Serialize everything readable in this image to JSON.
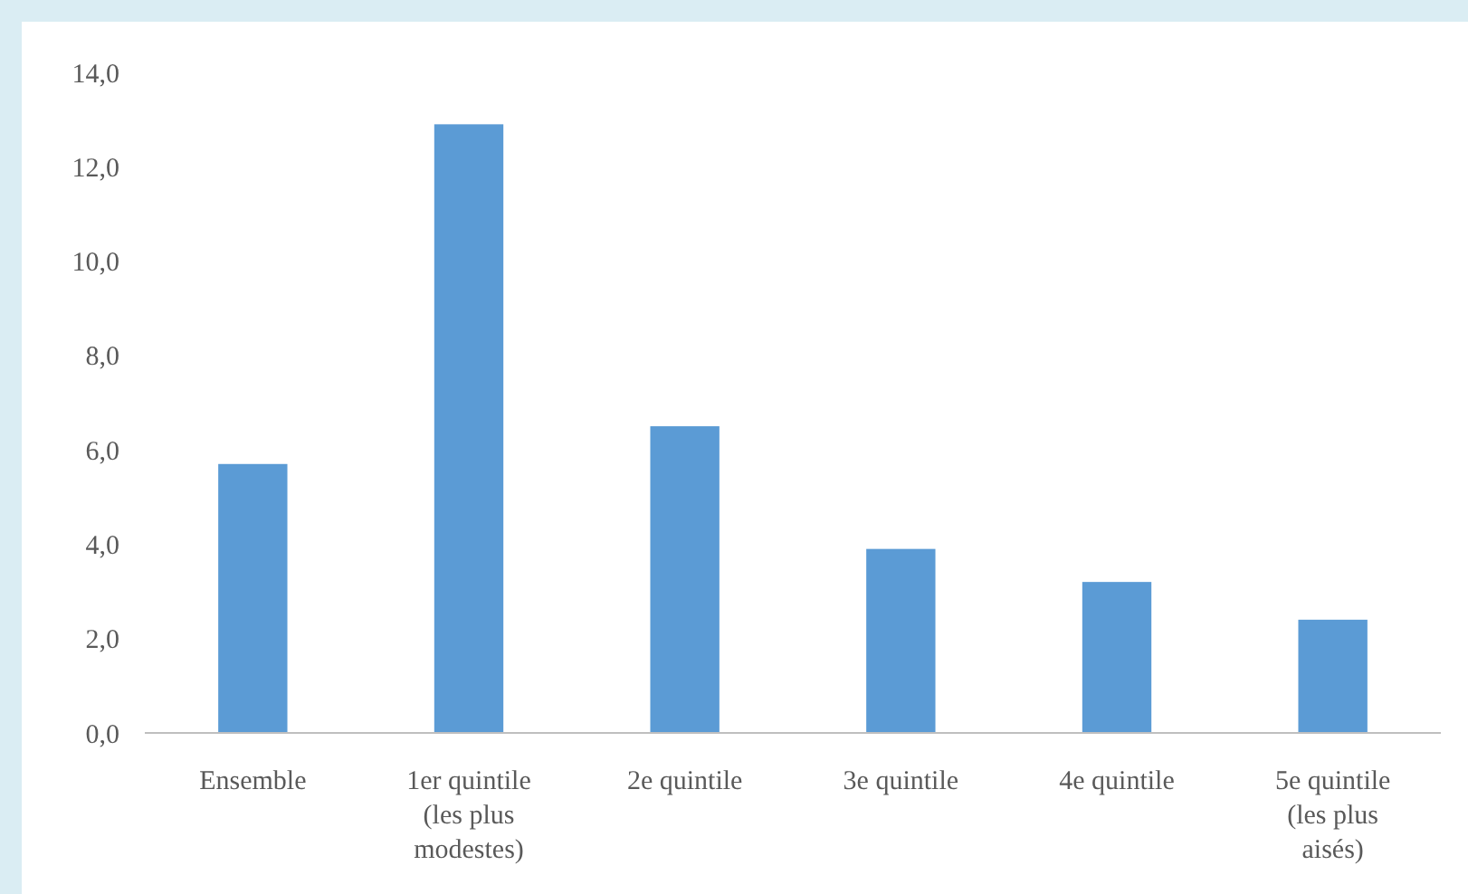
{
  "chart_data": {
    "type": "bar",
    "categories": [
      "Ensemble",
      "1er quintile (les plus modestes)",
      "2e quintile",
      "3e quintile",
      "4e quintile",
      "5e quintile (les plus aisés)"
    ],
    "values": [
      5.7,
      12.9,
      6.5,
      3.9,
      3.2,
      2.4
    ],
    "color": "#5b9bd5",
    "ylim": [
      0,
      14
    ],
    "yticks": [
      {
        "value": 0,
        "label": "0,0"
      },
      {
        "value": 2,
        "label": "2,0"
      },
      {
        "value": 4,
        "label": "4,0"
      },
      {
        "value": 6,
        "label": "6,0"
      },
      {
        "value": 8,
        "label": "8,0"
      },
      {
        "value": 10,
        "label": "10,0"
      },
      {
        "value": 12,
        "label": "12,0"
      },
      {
        "value": 14,
        "label": "14,0"
      }
    ],
    "grid": false
  }
}
